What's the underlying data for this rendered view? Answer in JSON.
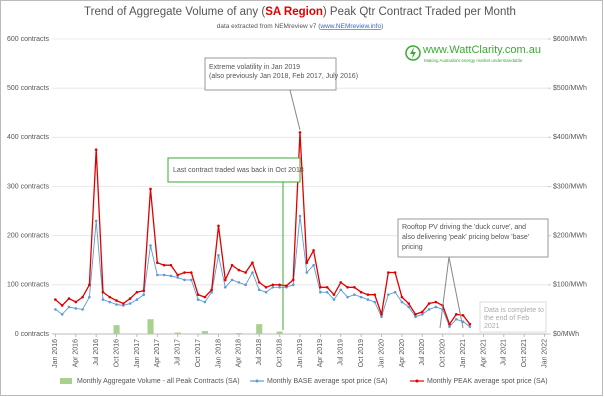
{
  "chart_data": {
    "type": "combo",
    "title_parts": [
      "Trend of Aggregate Volume of any (",
      "SA Region",
      ") Peak Qtr Contract Traded per Month"
    ],
    "subtitle_parts": [
      "data extracted from NEMreview v7 (",
      "www.NEMreview.info",
      ")"
    ],
    "logo": {
      "site": "www.WattClarity.com.au",
      "tagline": "Making Australia's energy market understandable"
    },
    "categories": [
      "Jan 2016",
      null,
      null,
      "Apr 2016",
      null,
      null,
      "Jul 2016",
      null,
      null,
      "Oct 2016",
      null,
      null,
      "Jan 2017",
      null,
      null,
      "Apr 2017",
      null,
      null,
      "Jul 2017",
      null,
      null,
      "Oct 2017",
      null,
      null,
      "Jan 2018",
      null,
      null,
      "Apr 2018",
      null,
      null,
      "Jul 2018",
      null,
      null,
      "Oct 2018",
      null,
      null,
      "Jan 2019",
      null,
      null,
      "Apr 2019",
      null,
      null,
      "Jul 2019",
      null,
      null,
      "Oct 2019",
      null,
      null,
      "Jan 2020",
      null,
      null,
      "Apr 2020",
      null,
      null,
      "Jul 2020",
      null,
      null,
      "Oct 2020",
      null,
      null,
      "Jan 2021",
      null,
      null,
      "Apr 2021",
      null,
      null,
      "Jul 2021",
      null,
      null,
      "Oct 2021",
      null,
      null,
      "Jan 2022"
    ],
    "series": [
      {
        "name": "Monthly Aggregate Volume - all Peak Contracts (SA)",
        "kind": "bar",
        "color": "#a9d18e",
        "axis": "y",
        "values": [
          0,
          0,
          0,
          0,
          0,
          0,
          0,
          0,
          0,
          18,
          0,
          0,
          0,
          0,
          30,
          0,
          0,
          0,
          3,
          0,
          0,
          0,
          6,
          0,
          0,
          0,
          0,
          2,
          0,
          0,
          20,
          0,
          0,
          5,
          0,
          0,
          0,
          0,
          0,
          0,
          0,
          0,
          0,
          0,
          0,
          0,
          0,
          0,
          0,
          0,
          0,
          0,
          0,
          0,
          0,
          0,
          0,
          0,
          0,
          0,
          0,
          0,
          null,
          null,
          null,
          null,
          null,
          null,
          null,
          null,
          null,
          null,
          null
        ]
      },
      {
        "name": "Monthly BASE average spot price (SA)",
        "kind": "line",
        "color": "#5b9bd5",
        "axis": "y2",
        "values": [
          50,
          40,
          55,
          52,
          50,
          75,
          230,
          70,
          65,
          60,
          58,
          62,
          70,
          80,
          180,
          120,
          120,
          118,
          115,
          110,
          110,
          70,
          65,
          85,
          160,
          95,
          110,
          105,
          100,
          125,
          90,
          85,
          95,
          95,
          95,
          100,
          240,
          125,
          140,
          85,
          85,
          70,
          90,
          75,
          80,
          75,
          70,
          65,
          35,
          80,
          85,
          65,
          55,
          35,
          40,
          50,
          55,
          50,
          15,
          30,
          25,
          15,
          null,
          null,
          null,
          null,
          null,
          null,
          null,
          null,
          null,
          null,
          null
        ]
      },
      {
        "name": "Monthly PEAK average spot price (SA)",
        "kind": "line",
        "color": "#e00000",
        "axis": "y2",
        "values": [
          70,
          58,
          72,
          65,
          75,
          100,
          375,
          85,
          75,
          68,
          62,
          72,
          85,
          88,
          295,
          145,
          140,
          140,
          120,
          125,
          125,
          80,
          75,
          90,
          220,
          110,
          140,
          130,
          125,
          145,
          105,
          95,
          100,
          100,
          98,
          110,
          410,
          145,
          170,
          95,
          95,
          80,
          105,
          95,
          95,
          85,
          80,
          80,
          40,
          125,
          125,
          75,
          62,
          40,
          45,
          62,
          65,
          58,
          20,
          40,
          38,
          20,
          null,
          null,
          null,
          null,
          null,
          null,
          null,
          null,
          null,
          null,
          null
        ]
      }
    ],
    "ylim": [
      0,
      600
    ],
    "yticks": [
      {
        "value": 0,
        "label": "0 contracts"
      },
      {
        "value": 100,
        "label": "100 contracts"
      },
      {
        "value": 200,
        "label": "200 contracts"
      },
      {
        "value": 300,
        "label": "300 contracts"
      },
      {
        "value": 400,
        "label": "400 contracts"
      },
      {
        "value": 500,
        "label": "500 contracts"
      },
      {
        "value": 600,
        "label": "600 contracts"
      }
    ],
    "y2lim": [
      0,
      600
    ],
    "y2ticks": [
      {
        "value": 0,
        "label": "$0/MWh"
      },
      {
        "value": 100,
        "label": "$100/MWh"
      },
      {
        "value": 200,
        "label": "$200/MWh"
      },
      {
        "value": 300,
        "label": "$300/MWh"
      },
      {
        "value": 400,
        "label": "$400/MWh"
      },
      {
        "value": 500,
        "label": "$500/MWh"
      },
      {
        "value": 600,
        "label": "$600/MWh"
      }
    ],
    "grid": true,
    "annotations": [
      {
        "lines": [
          "Extreme volatility in Jan 2019",
          "(also previously Jan 2018, Feb 2017, July 2016)"
        ]
      },
      {
        "lines": [
          "Last contract traded was back in Oct 2018"
        ]
      },
      {
        "lines": [
          "Rooftop PV driving the 'duck curve', and",
          "also delivering 'peak' pricing below 'base'",
          "pricing"
        ]
      },
      {
        "lines": [
          "Data is complete to",
          "the end of Feb",
          "2021"
        ]
      }
    ]
  }
}
